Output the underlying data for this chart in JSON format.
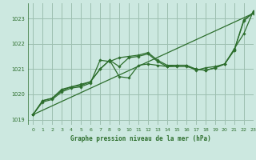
{
  "title": "Graphe pression niveau de la mer (hPa)",
  "background_color": "#cce8e0",
  "grid_color": "#9dbfb0",
  "line_color": "#2d6e2d",
  "marker_color": "#2d6e2d",
  "xlim": [
    -0.5,
    23
  ],
  "ylim": [
    1018.8,
    1023.6
  ],
  "yticks": [
    1019,
    1020,
    1021,
    1022,
    1023
  ],
  "xticks": [
    0,
    1,
    2,
    3,
    4,
    5,
    6,
    7,
    8,
    9,
    10,
    11,
    12,
    13,
    14,
    15,
    16,
    17,
    18,
    19,
    20,
    21,
    22,
    23
  ],
  "straight_line": [
    1019.2,
    1023.2
  ],
  "series": [
    [
      1019.2,
      1019.7,
      1019.8,
      1020.1,
      1020.25,
      1020.3,
      1020.45,
      1021.35,
      1021.3,
      1021.45,
      1021.5,
      1021.55,
      1021.65,
      1021.35,
      1021.15,
      1021.15,
      1021.15,
      1021.0,
      1020.95,
      1021.05,
      1021.2,
      1021.75,
      1022.9,
      1023.25
    ],
    [
      1019.2,
      1019.75,
      1019.85,
      1020.15,
      1020.3,
      1020.4,
      1020.5,
      1021.0,
      1021.35,
      1020.7,
      1020.65,
      1021.15,
      1021.2,
      1021.15,
      1021.1,
      1021.15,
      1021.15,
      1020.95,
      1021.05,
      1021.1,
      1021.2,
      1021.8,
      1022.4,
      1023.3
    ],
    [
      1019.2,
      1019.75,
      1019.85,
      1020.2,
      1020.3,
      1020.35,
      1020.5,
      1021.0,
      1021.35,
      1021.1,
      1021.45,
      1021.5,
      1021.6,
      1021.3,
      1021.1,
      1021.1,
      1021.1,
      1021.0,
      1020.95,
      1021.05,
      1021.2,
      1021.75,
      1022.95,
      1023.2
    ]
  ]
}
